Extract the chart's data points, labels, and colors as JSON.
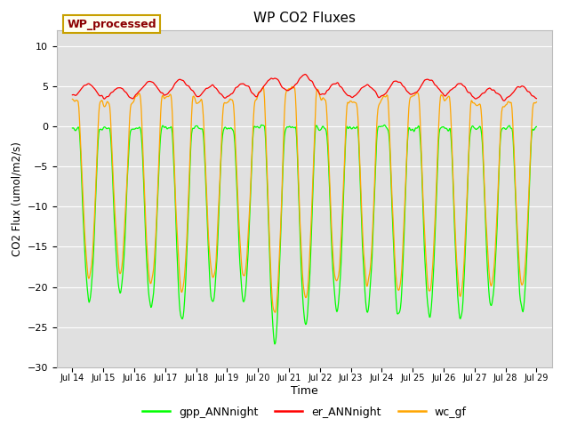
{
  "title": "WP CO2 Fluxes",
  "xlabel": "Time",
  "ylabel_display": "CO2 Flux (umol/m2/s)",
  "ylim": [
    -30,
    12
  ],
  "yticks": [
    -30,
    -25,
    -20,
    -15,
    -10,
    -5,
    0,
    5,
    10
  ],
  "bg_color": "#e0e0e0",
  "line_colors": {
    "gpp": "#00ff00",
    "er": "#ff0000",
    "wc": "#ffa500"
  },
  "legend_label": "WP_processed",
  "legend_text_color": "#8b0000",
  "legend_bg": "#fffff0",
  "legend_edge": "#c8a000",
  "series_labels": [
    "gpp_ANNnight",
    "er_ANNnight",
    "wc_gf"
  ],
  "xtick_labels": [
    "Jul 14",
    "Jul 15",
    "Jul 16",
    "Jul 17",
    "Jul 18",
    "Jul 19",
    "Jul 20",
    "Jul 21",
    "Jul 22",
    "Jul 23",
    "Jul 24",
    "Jul 25",
    "Jul 26",
    "Jul 27",
    "Jul 28",
    "Jul 29"
  ]
}
